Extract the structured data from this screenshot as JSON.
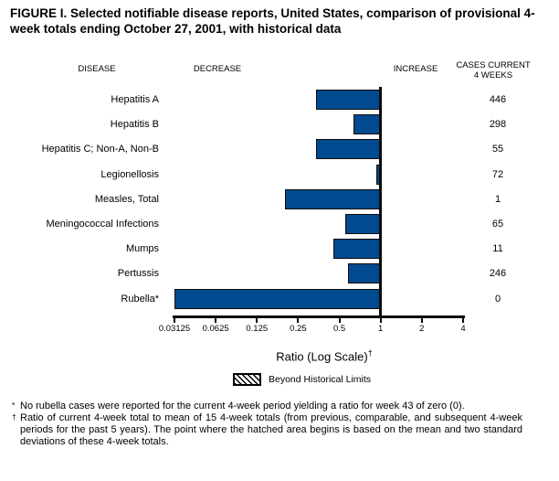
{
  "title": "FIGURE I. Selected notifiable disease reports, United States, comparison of provisional 4-week totals ending October 27, 2001, with historical data",
  "columns": {
    "disease": "DISEASE",
    "decrease": "DECREASE",
    "increase": "INCREASE",
    "cases_line1": "CASES CURRENT",
    "cases_line2": "4 WEEKS"
  },
  "chart_data": {
    "type": "bar",
    "orientation": "horizontal",
    "x_scale": "log2",
    "x_range": [
      0.03125,
      4
    ],
    "baseline": 1,
    "xlabel": "Ratio (Log Scale)",
    "xlabel_footnote_marker": "†",
    "x_ticks": [
      0.03125,
      0.0625,
      0.125,
      0.25,
      0.5,
      1,
      2,
      4
    ],
    "x_tick_labels": [
      "0.03125",
      "0.0625",
      "0.125",
      "0.25",
      "0.5",
      "1",
      "2",
      "4"
    ],
    "rows": [
      {
        "disease": "Hepatitis A",
        "ratio": 0.34,
        "cases": "446",
        "beyond_historical_limits": false
      },
      {
        "disease": "Hepatitis B",
        "ratio": 0.63,
        "cases": "298",
        "beyond_historical_limits": false
      },
      {
        "disease": "Hepatitis C; Non-A, Non-B",
        "ratio": 0.34,
        "cases": "55",
        "beyond_historical_limits": false
      },
      {
        "disease": "Legionellosis",
        "ratio": 0.93,
        "cases": "72",
        "beyond_historical_limits": false
      },
      {
        "disease": "Measles, Total",
        "ratio": 0.2,
        "cases": "1",
        "beyond_historical_limits": false
      },
      {
        "disease": "Meningococcal Infections",
        "ratio": 0.55,
        "cases": "65",
        "beyond_historical_limits": false
      },
      {
        "disease": "Mumps",
        "ratio": 0.45,
        "cases": "11",
        "beyond_historical_limits": false
      },
      {
        "disease": "Pertussis",
        "ratio": 0.58,
        "cases": "246",
        "beyond_historical_limits": false
      },
      {
        "disease": "Rubella*",
        "ratio": 0,
        "cases": "0",
        "beyond_historical_limits": false,
        "ratio_note": "ratio of zero; bar drawn to axis minimum 0.03125"
      }
    ],
    "legend": {
      "label": "Beyond Historical Limits",
      "swatch": "diagonal-hatch"
    }
  },
  "footnotes": [
    {
      "marker": "*",
      "text": "No rubella cases were reported for the current 4-week period yielding a ratio for week 43 of zero (0)."
    },
    {
      "marker": "†",
      "text": "Ratio of current 4-week total to mean of 15 4-week totals (from previous, comparable, and subsequent 4-week periods for the past 5 years). The point where the hatched area begins is based on the mean and two standard deviations of these 4-week totals."
    }
  ],
  "colors": {
    "bar_fill": "#004A8F",
    "bar_border": "#0b0b0b",
    "text": "#000000",
    "background": "#ffffff"
  }
}
